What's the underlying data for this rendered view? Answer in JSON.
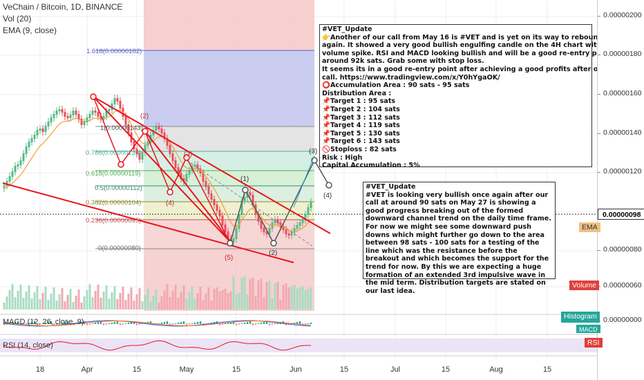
{
  "header": {
    "symbol_title": "VeChain / Bitcoin, 1D, BINANCE",
    "vol_label": "Vol (20)",
    "ema_label": "EMA (9, close)"
  },
  "panes": {
    "macd_label": "MACD (12, 26, close, 9)",
    "rsi_label": "RSI (14, close)"
  },
  "y_axis": {
    "ticks": [
      "0.00000200",
      "0.00000180",
      "0.00000160",
      "0.00000140",
      "0.00000120",
      "0.00000100",
      "0.00000080",
      "0.00000060"
    ],
    "current_price": "0.00000098",
    "macd_tick": "0.00000000"
  },
  "badges": {
    "ema": "EMA",
    "volume": "Volume",
    "histogram": "Histogram",
    "macd": "MACD",
    "rsi": "RSI"
  },
  "x_axis": {
    "ticks": [
      "18",
      "Apr",
      "15",
      "May",
      "15",
      "Jun",
      "15",
      "Jul",
      "15",
      "Aug",
      "15"
    ]
  },
  "fib_levels": [
    "1.618(0.00000182)",
    "1(0.00000143)",
    "0.786(0.00000130)",
    "0.618(0.00000119)",
    "0.5(0.00000112)",
    "0.382(0.00000104)",
    "0.236(0.00000095)",
    "0(0.00000080)"
  ],
  "wave_labels": [
    "(2)",
    "(3)",
    "(4)",
    "(5)",
    "(1)",
    "(2)",
    "(3)",
    "(4)"
  ],
  "note1": {
    "lines": [
      "#VET_Update",
      "👉Another of our call from May 16 is #VET and is yet on its way to rebounce once",
      "again. It showed a very good bullish engulfing candle on the 4H chart with a good",
      "volume spike. RSI and MACD looking bullish and will be a good re-entry point at",
      "around 92k sats. Grab some with stop loss.",
      "It seems its in a good re-entry point after achieving a good profits after our last",
      "call. https://www.tradingview.com/x/Y0hYgaOK/",
      "⭕Accumulation Area : 90 sats - 95 sats",
      "Distribution Area :",
      "📌Target 1 : 95 sats",
      "📌Target 2 : 104 sats",
      "📌Target 3 : 112 sats",
      "📌Target 4 : 119 sats",
      "📌Target 5 : 130 sats",
      "📌Target 6 :  143 sats",
      "🚫Stoploss : 82 sats",
      "Risk : High",
      "Capital Accumulation : 5%"
    ]
  },
  "note2": {
    "lines": [
      "#VET_Update",
      "#VET is looking very bullish once again after our call at around 90 sats on May 27 is showing a good progress breaking out of the formed downward channel trend on the daily time frame. For now we might see some downward push downs which might further go down to the area between 98 sats - 100 sats for a testing of the line which was the resistance before the breakout and which becomes the support for the trend for now. By this we are expecting a huge formation of an extended 3rd impulsive wave in the mid term. Distribution targets are stated on our last idea."
    ]
  },
  "colors": {
    "up": "#53b987",
    "down": "#eb4d5c",
    "ema": "#f0a030",
    "trend": "#e8141c",
    "volume_badge": "#e0403a",
    "ema_badge": "#f0c080",
    "teal": "#26a69a"
  }
}
